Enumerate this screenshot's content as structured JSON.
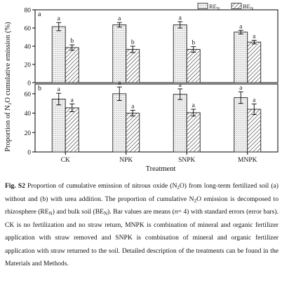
{
  "chart_data": {
    "type": "bar",
    "ylabel": "Proportion of N₂O cumulative emission (%)",
    "xlabel": "Treatment",
    "categories": [
      "CK",
      "NPK",
      "SNPK",
      "MNPK"
    ],
    "legend": [
      {
        "name": "RE",
        "subscript": "N",
        "pattern": "dots"
      },
      {
        "name": "BE",
        "subscript": "N",
        "pattern": "hatch"
      }
    ],
    "legend_placement": "top-right",
    "panels": [
      {
        "label": "a",
        "ylim": [
          0,
          80
        ],
        "yticks": [
          0,
          20,
          40,
          60,
          80
        ],
        "series": [
          {
            "name": "RE",
            "values": [
              61.5,
              63.5,
              63.5,
              55.5
            ],
            "errors": [
              4.5,
              2.5,
              3.5,
              2.0
            ],
            "letters": [
              "a",
              "a",
              "a",
              "a"
            ]
          },
          {
            "name": "BE",
            "values": [
              38.5,
              36.5,
              36.5,
              44.5
            ],
            "errors": [
              3.0,
              3.5,
              3.0,
              2.0
            ],
            "letters": [
              "b",
              "b",
              "b",
              "a"
            ]
          }
        ]
      },
      {
        "label": "b",
        "ylim": [
          0,
          70
        ],
        "yticks": [
          0,
          20,
          40,
          60
        ],
        "series": [
          {
            "name": "RE",
            "values": [
              54.5,
              60.0,
              59.5,
              56.0
            ],
            "errors": [
              6.0,
              7.0,
              5.5,
              6.0
            ],
            "letters": [
              "a",
              "a",
              "a",
              "a"
            ]
          },
          {
            "name": "BE",
            "values": [
              45.5,
              40.0,
              40.5,
              44.0
            ],
            "errors": [
              4.0,
              3.0,
              3.5,
              5.5
            ],
            "letters": [
              "a",
              "a",
              "a",
              "a"
            ]
          }
        ]
      }
    ]
  },
  "caption": {
    "label": "Fig. S2",
    "t1": " Proportion of cumulative emission of nitrous oxide (N",
    "s1": "2",
    "t2": "O) from long-term fertilized soil (a) without and (b) with urea addition. The proportion of cumulative N",
    "s2": "2",
    "t3": "O emission is decomposed to rhizosphere (RE",
    "s3": "N",
    "t4": ") and bulk soil (BE",
    "s4": "N",
    "t5": "). Bar values are means (",
    "n_sym": "n",
    "t6": "= 4) with standard errors (error bars). CK is no fertilization and no straw return, MNPK is combination of mineral and organic fertilizer application with straw removed and SNPK is combination of mineral and organic fertilizer application with straw returned to the soil. Detailed description of the treatments can be found in the Materials and Methods."
  }
}
